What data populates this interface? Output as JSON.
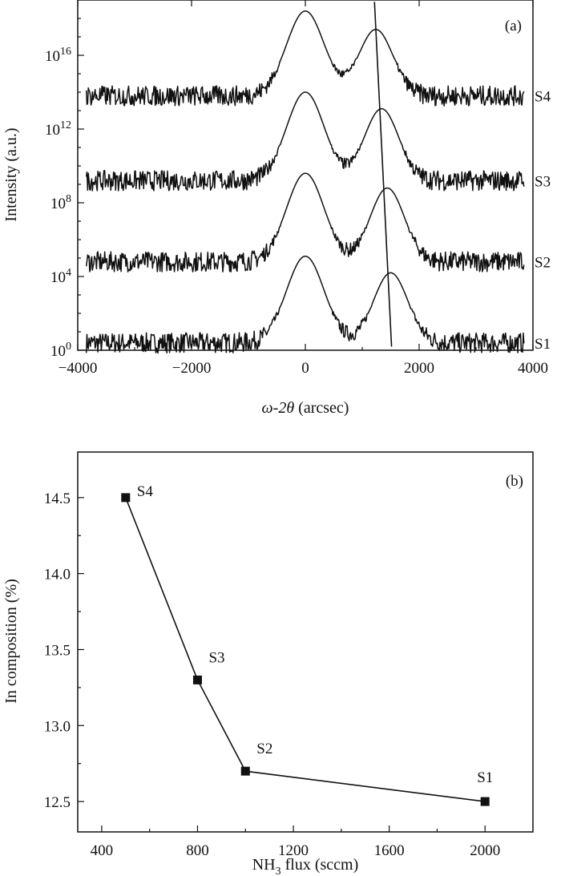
{
  "chart_data": [
    {
      "type": "line",
      "panel": "(a)",
      "xlabel_italic": "ω-2θ",
      "xlabel_unit": " (arcsec)",
      "ylabel": "Intensity (a.u.)",
      "xlim": [
        -4000,
        4000
      ],
      "x_ticks": [
        -4000,
        -2000,
        0,
        2000,
        4000
      ],
      "x_tick_labels": [
        "−4000",
        "−2000",
        "0",
        "2000",
        "4000"
      ],
      "y_scale": "log",
      "ylim": [
        1,
        1e+19
      ],
      "y_tick_base": "10",
      "y_tick_exponents": [
        "0",
        "4",
        "8",
        "12",
        "16"
      ],
      "series": [
        {
          "name": "S1",
          "baseline_log10": 0.4,
          "peaks": [
            {
              "x": 0,
              "log10": 5.1
            },
            {
              "x": 1500,
              "log10": 4.2
            }
          ],
          "valley_log10": 2.6
        },
        {
          "name": "S2",
          "baseline_log10": 4.8,
          "peaks": [
            {
              "x": 0,
              "log10": 9.6
            },
            {
              "x": 1440,
              "log10": 8.8
            }
          ],
          "valley_log10": 6.8
        },
        {
          "name": "S3",
          "baseline_log10": 9.2,
          "peaks": [
            {
              "x": 0,
              "log10": 14.0
            },
            {
              "x": 1340,
              "log10": 13.1
            }
          ],
          "valley_log10": 11.0
        },
        {
          "name": "S4",
          "baseline_log10": 13.8,
          "peaks": [
            {
              "x": 0,
              "log10": 18.4
            },
            {
              "x": 1240,
              "log10": 17.4
            }
          ],
          "valley_log10": 15.6
        }
      ],
      "trend_line": {
        "x": [
          1215,
          1515
        ],
        "log10": [
          18.9,
          0.2
        ]
      }
    },
    {
      "type": "line",
      "panel": "(b)",
      "xlabel_main": "NH",
      "xlabel_sub": "3",
      "xlabel_rest": " flux (sccm)",
      "ylabel": "In composition (%)",
      "xlim": [
        300,
        2200
      ],
      "ylim": [
        12.3,
        14.8
      ],
      "x_ticks": [
        400,
        800,
        1200,
        1600,
        2000
      ],
      "x_tick_labels": [
        "400",
        "800",
        "1200",
        "1600",
        "2000"
      ],
      "y_ticks": [
        12.5,
        13.0,
        13.5,
        14.0,
        14.5
      ],
      "y_tick_labels": [
        "12.5",
        "13.0",
        "13.5",
        "14.0",
        "14.5"
      ],
      "series": [
        {
          "x": [
            500,
            800,
            1000,
            2000
          ],
          "y": [
            14.5,
            13.3,
            12.7,
            12.5
          ],
          "point_labels": [
            "S4",
            "S3",
            "S2",
            "S1"
          ]
        }
      ]
    }
  ]
}
